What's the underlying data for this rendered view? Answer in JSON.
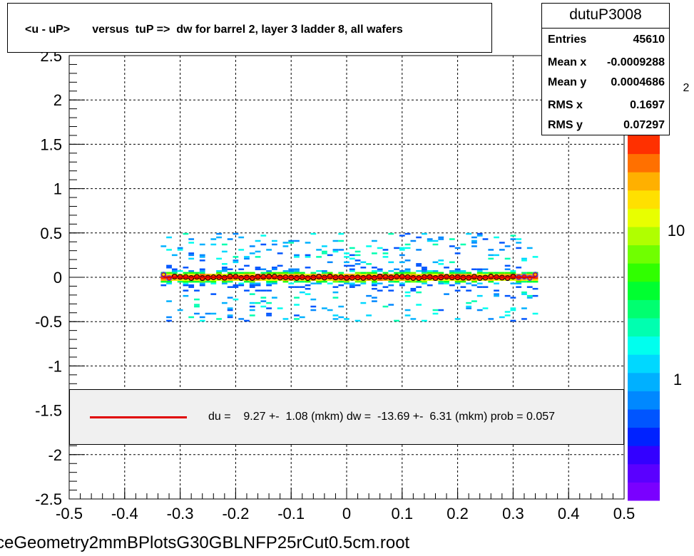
{
  "title": "<u - uP>       versus  tuP =>  dw for barrel 2, layer 3 ladder 8, all wafers",
  "stats": {
    "name": "dutuP3008",
    "rows": [
      {
        "label": "Entries",
        "value": "45610"
      },
      {
        "label": "Mean x",
        "value": "-0.0009288"
      },
      {
        "label": "Mean y",
        "value": "0.0004686"
      },
      {
        "label": "RMS x",
        "value": "0.1697"
      },
      {
        "label": "RMS y",
        "value": "0.07297"
      }
    ]
  },
  "fit_legend": "du =    9.27 +-  1.08 (mkm) dw =  -13.69 +-  6.31 (mkm) prob = 0.057",
  "footer_file": "ceGeometry2mmBPlotsG30GBLNFP25rCut0.5cm.root",
  "colors": {
    "fit_line": "#e00000",
    "profile_marker": "#000000",
    "profile_marker_alt": "#3333ff"
  },
  "chart_data": {
    "type": "heatmap",
    "xlim": [
      -0.5,
      0.5
    ],
    "ylim": [
      -2.5,
      2.5
    ],
    "x_ticks": [
      "-0.5",
      "-0.4",
      "-0.3",
      "-0.2",
      "-0.1",
      "0",
      "0.1",
      "0.2",
      "0.3",
      "0.4",
      "0.5"
    ],
    "y_ticks": [
      "-2.5",
      "-2",
      "-1.5",
      "-1",
      "-0.5",
      "0",
      "0.5",
      "1",
      "1.5",
      "2",
      "2.5"
    ],
    "grid": true,
    "z_scale": "log",
    "z_ticks": [
      "1",
      "10"
    ],
    "z_exponent_fragment": "2",
    "data_x_range": [
      -0.335,
      0.34
    ],
    "data_y_range": [
      -0.5,
      0.5
    ],
    "profile": {
      "x_start": -0.33,
      "x_end": 0.34,
      "y_mean": 0.0,
      "marker": "open-circle"
    },
    "fit": {
      "du_mkm": 9.27,
      "du_err": 1.08,
      "dw_mkm": -13.69,
      "dw_err": 6.31,
      "prob": 0.057
    }
  }
}
